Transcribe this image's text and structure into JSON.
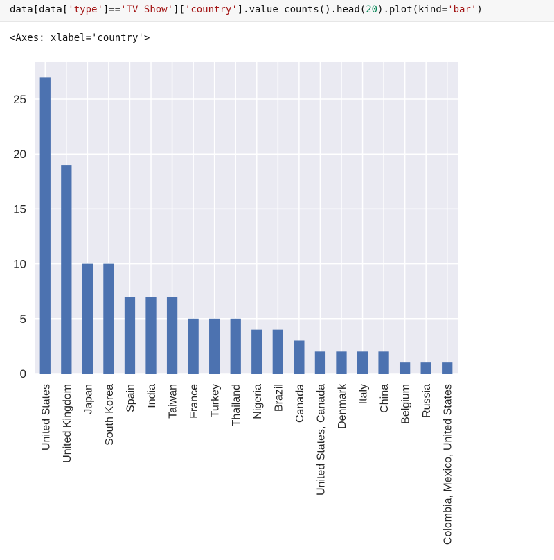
{
  "code_cell": {
    "prefix": "data[data[",
    "s1": "'type'",
    "mid1": "]==",
    "s2": "'TV Show'",
    "mid2": "][",
    "s3": "'country'",
    "mid3": "].value_counts().head(",
    "n1": "20",
    "mid4": ").plot(kind=",
    "s4": "'bar'",
    "suffix": ")"
  },
  "output_text": "<Axes: xlabel='country'>",
  "colors": {
    "bar": "#4c72b0",
    "plot_bg": "#eaeaf2",
    "grid": "#ffffff",
    "code_bg": "#f7f7f7"
  },
  "chart_data": {
    "type": "bar",
    "title": "",
    "xlabel": "",
    "ylabel": "",
    "categories": [
      "United States",
      "United Kingdom",
      "Japan",
      "South Korea",
      "Spain",
      "India",
      "Taiwan",
      "France",
      "Turkey",
      "Thailand",
      "Nigeria",
      "Brazil",
      "Canada",
      "United States, Canada",
      "Denmark",
      "Italy",
      "China",
      "Belgium",
      "Russia",
      "Colombia, Mexico, United States"
    ],
    "values": [
      27,
      19,
      10,
      10,
      7,
      7,
      7,
      5,
      5,
      5,
      4,
      4,
      3,
      2,
      2,
      2,
      2,
      1,
      1,
      1
    ],
    "ylim": [
      0,
      28.35
    ],
    "yticks": [
      0,
      5,
      10,
      15,
      20,
      25
    ],
    "grid": true,
    "legend": "none"
  }
}
